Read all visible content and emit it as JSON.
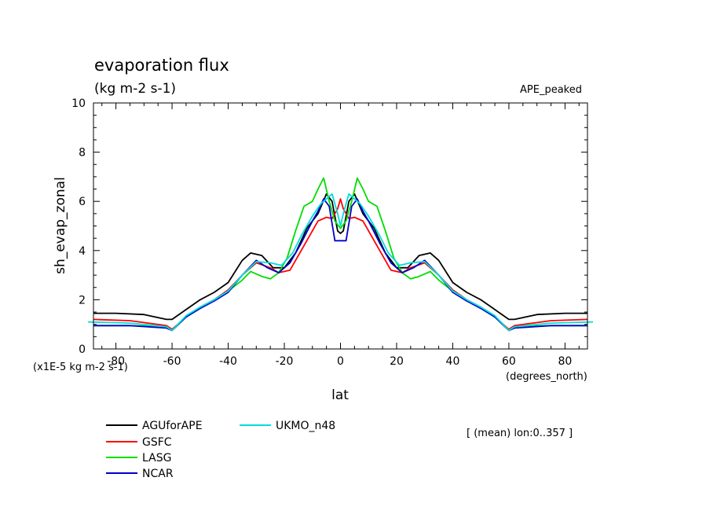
{
  "chart_data": {
    "type": "line",
    "title": "evaporation flux",
    "units": "(kg m-2 s-1)",
    "experiment": "APE_peaked",
    "ylabel": "sh_evap_zonal",
    "yscale_note": "(x1E-5 kg m-2 s-1)",
    "xlabel": "lat",
    "xunits": "(degrees_north)",
    "footnote": "[ (mean) lon:0..357 ]",
    "xlim": [
      -88,
      88
    ],
    "ylim": [
      0,
      10
    ],
    "xticks": [
      -80,
      -60,
      -40,
      -20,
      0,
      20,
      40,
      60,
      80
    ],
    "yticks": [
      0,
      2,
      4,
      6,
      8,
      10
    ],
    "series": [
      {
        "name": "AGUforAPE",
        "color": "#000000",
        "x": [
          -88,
          -80,
          -70,
          -62,
          -60,
          -55,
          -50,
          -45,
          -40,
          -35,
          -32,
          -28,
          -24,
          -20,
          -16,
          -12,
          -8,
          -5,
          -3,
          -1,
          0,
          1,
          3,
          5,
          8,
          12,
          16,
          20,
          24,
          28,
          32,
          35,
          40,
          45,
          50,
          55,
          60,
          62,
          70,
          80,
          88
        ],
        "y": [
          1.45,
          1.45,
          1.4,
          1.2,
          1.2,
          1.6,
          2.0,
          2.3,
          2.7,
          3.6,
          3.9,
          3.8,
          3.3,
          3.3,
          3.9,
          4.9,
          5.5,
          6.3,
          6.0,
          4.8,
          4.7,
          4.8,
          6.0,
          6.3,
          5.5,
          4.9,
          3.9,
          3.3,
          3.3,
          3.8,
          3.9,
          3.6,
          2.7,
          2.3,
          2.0,
          1.6,
          1.2,
          1.2,
          1.4,
          1.45,
          1.45
        ]
      },
      {
        "name": "GSFC",
        "color": "#ff0000",
        "x": [
          -88,
          -75,
          -62,
          -60,
          -55,
          -50,
          -45,
          -40,
          -35,
          -30,
          -25,
          -22,
          -18,
          -15,
          -12,
          -8,
          -5,
          -3,
          -1,
          0,
          1,
          3,
          5,
          8,
          12,
          15,
          18,
          22,
          25,
          30,
          35,
          40,
          45,
          50,
          55,
          60,
          62,
          75,
          88
        ],
        "y": [
          1.2,
          1.15,
          0.95,
          0.8,
          1.3,
          1.7,
          2.0,
          2.4,
          3.0,
          3.5,
          3.3,
          3.1,
          3.2,
          3.8,
          4.4,
          5.2,
          5.35,
          5.3,
          5.7,
          6.1,
          5.7,
          5.3,
          5.35,
          5.2,
          4.4,
          3.8,
          3.2,
          3.1,
          3.3,
          3.5,
          3.0,
          2.4,
          2.0,
          1.7,
          1.3,
          0.8,
          0.95,
          1.15,
          1.2
        ]
      },
      {
        "name": "LASG",
        "color": "#00dd00",
        "x": [
          -88,
          -75,
          -62,
          -60,
          -55,
          -50,
          -45,
          -40,
          -35,
          -32,
          -28,
          -25,
          -22,
          -19,
          -16,
          -13,
          -10,
          -8,
          -6,
          -4,
          -2,
          0,
          2,
          4,
          6,
          8,
          10,
          13,
          16,
          19,
          22,
          25,
          28,
          32,
          35,
          40,
          45,
          50,
          55,
          60,
          62,
          75,
          88
        ],
        "y": [
          0.95,
          0.95,
          0.9,
          0.75,
          1.3,
          1.65,
          2.0,
          2.35,
          2.8,
          3.15,
          2.95,
          2.85,
          3.1,
          3.7,
          4.8,
          5.8,
          6.0,
          6.5,
          6.95,
          6.0,
          5.2,
          4.9,
          5.2,
          6.0,
          6.95,
          6.5,
          6.0,
          5.8,
          4.8,
          3.7,
          3.1,
          2.85,
          2.95,
          3.15,
          2.8,
          2.35,
          2.0,
          1.65,
          1.3,
          0.75,
          0.9,
          0.95,
          0.95
        ]
      },
      {
        "name": "NCAR",
        "color": "#0000cc",
        "x": [
          -88,
          -75,
          -62,
          -60,
          -55,
          -50,
          -45,
          -40,
          -35,
          -30,
          -26,
          -22,
          -18,
          -14,
          -10,
          -8,
          -6,
          -4,
          -2,
          0,
          2,
          4,
          6,
          8,
          10,
          14,
          18,
          22,
          26,
          30,
          35,
          40,
          45,
          50,
          55,
          60,
          62,
          75,
          88
        ],
        "y": [
          0.95,
          0.95,
          0.85,
          0.75,
          1.3,
          1.65,
          1.95,
          2.3,
          3.0,
          3.6,
          3.3,
          3.1,
          3.5,
          4.3,
          5.2,
          5.6,
          6.1,
          5.8,
          4.4,
          4.4,
          4.4,
          5.8,
          6.1,
          5.6,
          5.2,
          4.3,
          3.5,
          3.1,
          3.3,
          3.6,
          3.0,
          2.3,
          1.95,
          1.65,
          1.3,
          0.75,
          0.85,
          0.95,
          0.95
        ]
      },
      {
        "name": "UKMO_n48",
        "color": "#00dddd",
        "x": [
          -90,
          -75,
          -62,
          -60,
          -55,
          -50,
          -45,
          -40,
          -35,
          -30,
          -25,
          -21,
          -17,
          -14,
          -10,
          -7,
          -5,
          -3,
          -1,
          0,
          1,
          3,
          5,
          7,
          10,
          14,
          17,
          21,
          25,
          30,
          35,
          40,
          45,
          50,
          55,
          60,
          62,
          75,
          90
        ],
        "y": [
          1.1,
          1.05,
          0.9,
          0.75,
          1.35,
          1.7,
          2.0,
          2.35,
          3.0,
          3.55,
          3.5,
          3.4,
          3.9,
          4.6,
          5.4,
          5.9,
          6.1,
          6.3,
          5.5,
          5.0,
          5.5,
          6.3,
          6.1,
          5.9,
          5.4,
          4.6,
          3.9,
          3.4,
          3.5,
          3.55,
          3.0,
          2.35,
          2.0,
          1.7,
          1.35,
          0.75,
          0.9,
          1.05,
          1.1
        ]
      }
    ]
  }
}
